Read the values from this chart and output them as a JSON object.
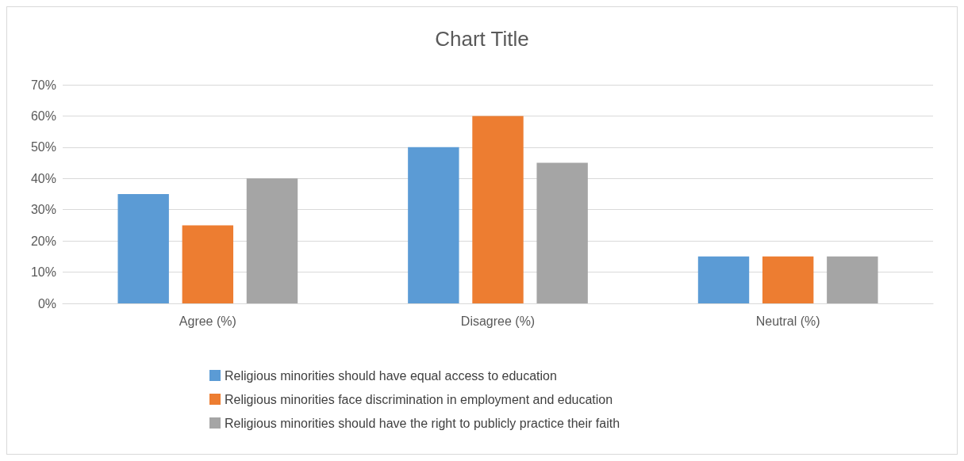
{
  "chart_data": {
    "type": "bar",
    "title": "Chart Title",
    "categories": [
      "Agree (%)",
      "Disagree (%)",
      "Neutral (%)"
    ],
    "series": [
      {
        "name": "Religious minorities should have equal access to education",
        "color": "#5b9bd5",
        "values": [
          35,
          50,
          15
        ]
      },
      {
        "name": "Religious minorities face discrimination in employment and education",
        "color": "#ed7d31",
        "values": [
          25,
          60,
          15
        ]
      },
      {
        "name": "Religious minorities should have the right to publicly practice their faith",
        "color": "#a5a5a5",
        "values": [
          40,
          45,
          15
        ]
      }
    ],
    "ylim": [
      0,
      70
    ],
    "yticks": [
      {
        "value": 0,
        "label": "0%"
      },
      {
        "value": 10,
        "label": "10%"
      },
      {
        "value": 20,
        "label": "20%"
      },
      {
        "value": 30,
        "label": "30%"
      },
      {
        "value": 40,
        "label": "40%"
      },
      {
        "value": 50,
        "label": "50%"
      },
      {
        "value": 60,
        "label": "60%"
      },
      {
        "value": 70,
        "label": "70%"
      }
    ],
    "grid": "y",
    "legend": "bottom"
  }
}
